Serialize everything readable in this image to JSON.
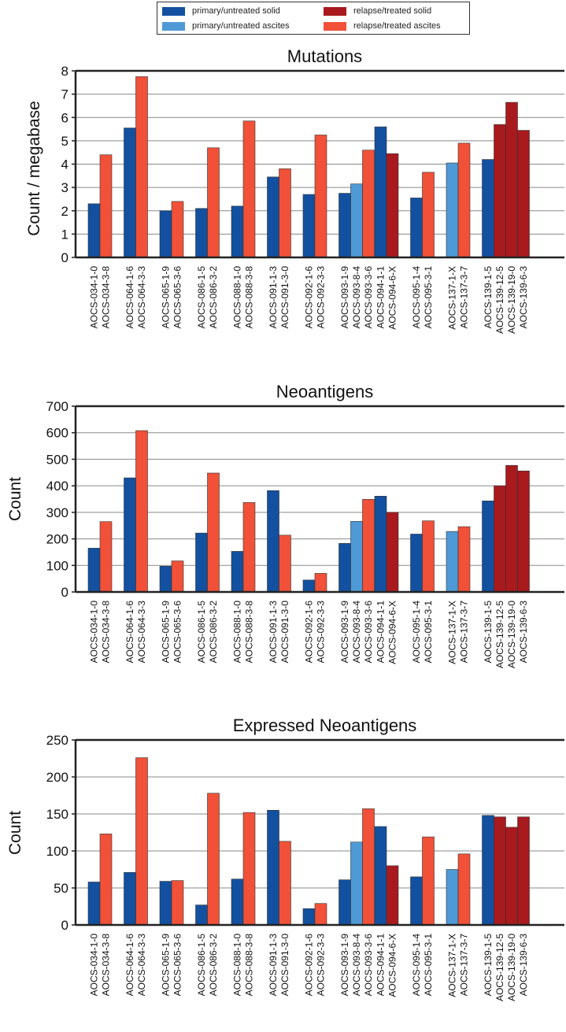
{
  "legend": {
    "items": [
      {
        "label": "primary/untreated solid",
        "color": "#1350a0"
      },
      {
        "label": "primary/untreated ascites",
        "color": "#4f9ad6"
      },
      {
        "label": "relapse/treated solid",
        "color": "#a81a1e"
      },
      {
        "label": "relapse/treated ascites",
        "color": "#f05138"
      }
    ]
  },
  "chart_data": [
    {
      "type": "bar",
      "title": "Mutations",
      "ylabel": "Count / megabase",
      "ylim": [
        0,
        8
      ],
      "yticks": [
        0,
        1,
        2,
        3,
        4,
        5,
        6,
        7,
        8
      ],
      "grid": true,
      "groups": [
        {
          "bars": [
            {
              "label": "AOCS-034-1-0",
              "value": 2.3,
              "status": 0
            },
            {
              "label": "AOCS-034-3-8",
              "value": 4.4,
              "status": 3
            }
          ]
        },
        {
          "bars": [
            {
              "label": "AOCS-064-1-6",
              "value": 5.55,
              "status": 0
            },
            {
              "label": "AOCS-064-3-3",
              "value": 7.75,
              "status": 3
            }
          ]
        },
        {
          "bars": [
            {
              "label": "AOCS-065-1-9",
              "value": 2.0,
              "status": 0
            },
            {
              "label": "AOCS-065-3-6",
              "value": 2.4,
              "status": 3
            }
          ]
        },
        {
          "bars": [
            {
              "label": "AOCS-086-1-5",
              "value": 2.1,
              "status": 0
            },
            {
              "label": "AOCS-086-3-2",
              "value": 4.7,
              "status": 3
            }
          ]
        },
        {
          "bars": [
            {
              "label": "AOCS-088-1-0",
              "value": 2.2,
              "status": 0
            },
            {
              "label": "AOCS-088-3-8",
              "value": 5.85,
              "status": 3
            }
          ]
        },
        {
          "bars": [
            {
              "label": "AOCS-091-1-3",
              "value": 3.45,
              "status": 0
            },
            {
              "label": "AOCS-091-3-0",
              "value": 3.8,
              "status": 3
            }
          ]
        },
        {
          "bars": [
            {
              "label": "AOCS-092-1-6",
              "value": 2.7,
              "status": 0
            },
            {
              "label": "AOCS-092-3-3",
              "value": 5.25,
              "status": 3
            }
          ]
        },
        {
          "bars": [
            {
              "label": "AOCS-093-1-9",
              "value": 2.75,
              "status": 0
            },
            {
              "label": "AOCS-093-8-4",
              "value": 3.15,
              "status": 1
            },
            {
              "label": "AOCS-093-3-6",
              "value": 4.6,
              "status": 3
            }
          ]
        },
        {
          "bars": [
            {
              "label": "AOCS-094-1-1",
              "value": 5.6,
              "status": 0
            },
            {
              "label": "AOCS-094-6-X",
              "value": 4.45,
              "status": 2
            }
          ]
        },
        {
          "bars": [
            {
              "label": "AOCS-095-1-4",
              "value": 2.55,
              "status": 0
            },
            {
              "label": "AOCS-095-3-1",
              "value": 3.65,
              "status": 3
            }
          ]
        },
        {
          "bars": [
            {
              "label": "AOCS-137-1-X",
              "value": 4.05,
              "status": 1
            },
            {
              "label": "AOCS-137-3-7",
              "value": 4.9,
              "status": 3
            }
          ]
        },
        {
          "bars": [
            {
              "label": "AOCS-139-1-5",
              "value": 4.2,
              "status": 0
            },
            {
              "label": "AOCS-139-12-5",
              "value": 5.7,
              "status": 2
            },
            {
              "label": "AOCS-139-19-0",
              "value": 6.65,
              "status": 2
            },
            {
              "label": "AOCS-139-6-3",
              "value": 5.45,
              "status": 2
            }
          ]
        }
      ]
    },
    {
      "type": "bar",
      "title": "Neoantigens",
      "ylabel": "Count",
      "ylim": [
        0,
        700
      ],
      "yticks": [
        0,
        100,
        200,
        300,
        400,
        500,
        600,
        700
      ],
      "grid": true,
      "groups": [
        {
          "bars": [
            {
              "label": "AOCS-034-1-0",
              "value": 165,
              "status": 0
            },
            {
              "label": "AOCS-034-3-8",
              "value": 265,
              "status": 3
            }
          ]
        },
        {
          "bars": [
            {
              "label": "AOCS-064-1-6",
              "value": 430,
              "status": 0
            },
            {
              "label": "AOCS-064-3-3",
              "value": 608,
              "status": 3
            }
          ]
        },
        {
          "bars": [
            {
              "label": "AOCS-065-1-9",
              "value": 97,
              "status": 0
            },
            {
              "label": "AOCS-065-3-6",
              "value": 117,
              "status": 3
            }
          ]
        },
        {
          "bars": [
            {
              "label": "AOCS-086-1-5",
              "value": 222,
              "status": 0
            },
            {
              "label": "AOCS-086-3-2",
              "value": 448,
              "status": 3
            }
          ]
        },
        {
          "bars": [
            {
              "label": "AOCS-088-1-0",
              "value": 153,
              "status": 0
            },
            {
              "label": "AOCS-088-3-8",
              "value": 337,
              "status": 3
            }
          ]
        },
        {
          "bars": [
            {
              "label": "AOCS-091-1-3",
              "value": 382,
              "status": 0
            },
            {
              "label": "AOCS-091-3-0",
              "value": 214,
              "status": 3
            }
          ]
        },
        {
          "bars": [
            {
              "label": "AOCS-092-1-6",
              "value": 45,
              "status": 0
            },
            {
              "label": "AOCS-092-3-3",
              "value": 70,
              "status": 3
            }
          ]
        },
        {
          "bars": [
            {
              "label": "AOCS-093-1-9",
              "value": 183,
              "status": 0
            },
            {
              "label": "AOCS-093-8-4",
              "value": 266,
              "status": 1
            },
            {
              "label": "AOCS-093-3-6",
              "value": 349,
              "status": 3
            }
          ]
        },
        {
          "bars": [
            {
              "label": "AOCS-094-1-1",
              "value": 361,
              "status": 0
            },
            {
              "label": "AOCS-094-6-X",
              "value": 300,
              "status": 2
            }
          ]
        },
        {
          "bars": [
            {
              "label": "AOCS-095-1-4",
              "value": 218,
              "status": 0
            },
            {
              "label": "AOCS-095-3-1",
              "value": 268,
              "status": 3
            }
          ]
        },
        {
          "bars": [
            {
              "label": "AOCS-137-1-X",
              "value": 228,
              "status": 1
            },
            {
              "label": "AOCS-137-3-7",
              "value": 246,
              "status": 3
            }
          ]
        },
        {
          "bars": [
            {
              "label": "AOCS-139-1-5",
              "value": 343,
              "status": 0
            },
            {
              "label": "AOCS-139-12-5",
              "value": 400,
              "status": 2
            },
            {
              "label": "AOCS-139-19-0",
              "value": 477,
              "status": 2
            },
            {
              "label": "AOCS-139-6-3",
              "value": 456,
              "status": 2
            }
          ]
        }
      ]
    },
    {
      "type": "bar",
      "title": "Expressed Neoantigens",
      "ylabel": "Count",
      "ylim": [
        0,
        250
      ],
      "yticks": [
        0,
        50,
        100,
        150,
        200,
        250
      ],
      "grid": true,
      "groups": [
        {
          "bars": [
            {
              "label": "AOCS-034-1-0",
              "value": 58,
              "status": 0
            },
            {
              "label": "AOCS-034-3-8",
              "value": 123,
              "status": 3
            }
          ]
        },
        {
          "bars": [
            {
              "label": "AOCS-064-1-6",
              "value": 71,
              "status": 0
            },
            {
              "label": "AOCS-064-3-3",
              "value": 226,
              "status": 3
            }
          ]
        },
        {
          "bars": [
            {
              "label": "AOCS-065-1-9",
              "value": 59,
              "status": 0
            },
            {
              "label": "AOCS-065-3-6",
              "value": 60,
              "status": 3
            }
          ]
        },
        {
          "bars": [
            {
              "label": "AOCS-086-1-5",
              "value": 27,
              "status": 0
            },
            {
              "label": "AOCS-086-3-2",
              "value": 178,
              "status": 3
            }
          ]
        },
        {
          "bars": [
            {
              "label": "AOCS-088-1-0",
              "value": 62,
              "status": 0
            },
            {
              "label": "AOCS-088-3-8",
              "value": 152,
              "status": 3
            }
          ]
        },
        {
          "bars": [
            {
              "label": "AOCS-091-1-3",
              "value": 155,
              "status": 0
            },
            {
              "label": "AOCS-091-3-0",
              "value": 113,
              "status": 3
            }
          ]
        },
        {
          "bars": [
            {
              "label": "AOCS-092-1-6",
              "value": 22,
              "status": 0
            },
            {
              "label": "AOCS-092-3-3",
              "value": 29,
              "status": 3
            }
          ]
        },
        {
          "bars": [
            {
              "label": "AOCS-093-1-9",
              "value": 61,
              "status": 0
            },
            {
              "label": "AOCS-093-8-4",
              "value": 112,
              "status": 1
            },
            {
              "label": "AOCS-093-3-6",
              "value": 157,
              "status": 3
            }
          ]
        },
        {
          "bars": [
            {
              "label": "AOCS-094-1-1",
              "value": 133,
              "status": 0
            },
            {
              "label": "AOCS-094-6-X",
              "value": 80,
              "status": 2
            }
          ]
        },
        {
          "bars": [
            {
              "label": "AOCS-095-1-4",
              "value": 65,
              "status": 0
            },
            {
              "label": "AOCS-095-3-1",
              "value": 119,
              "status": 3
            }
          ]
        },
        {
          "bars": [
            {
              "label": "AOCS-137-1-X",
              "value": 75,
              "status": 1
            },
            {
              "label": "AOCS-137-3-7",
              "value": 96,
              "status": 3
            }
          ]
        },
        {
          "bars": [
            {
              "label": "AOCS-139-1-5",
              "value": 148,
              "status": 0
            },
            {
              "label": "AOCS-139-12-5",
              "value": 146,
              "status": 2
            },
            {
              "label": "AOCS-139-19-0",
              "value": 132,
              "status": 2
            },
            {
              "label": "AOCS-139-6-3",
              "value": 146,
              "status": 2
            }
          ]
        }
      ]
    }
  ]
}
